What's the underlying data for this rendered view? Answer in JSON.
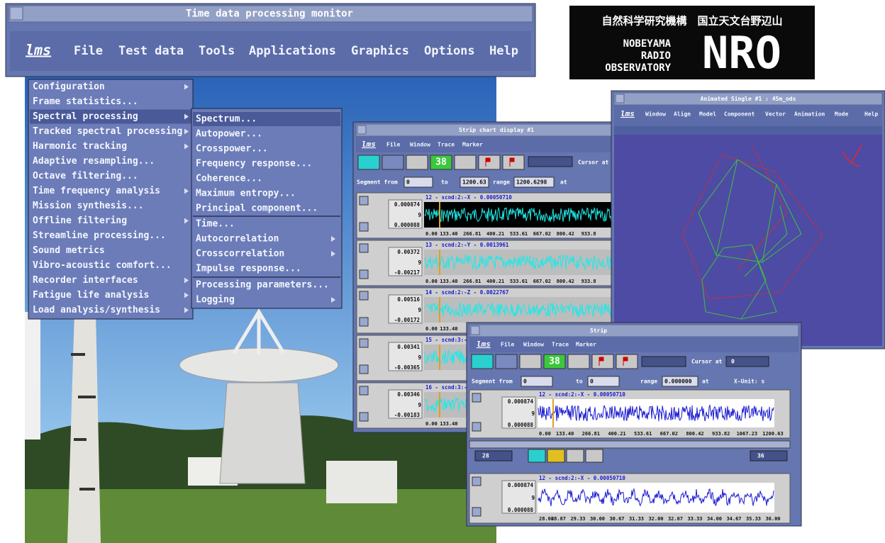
{
  "main_window": {
    "title": "Time data processing monitor",
    "logo": "lms",
    "menu": [
      "File",
      "Test data",
      "Tools",
      "Applications",
      "Graphics",
      "Options",
      "Help"
    ]
  },
  "nro_logo": {
    "japanese": "自然科学研究機構　国立天文台野辺山",
    "lines": [
      "NOBEYAMA",
      "RADIO",
      "OBSERVATORY"
    ],
    "mark": "NRO"
  },
  "tools_menu": {
    "items": [
      "Configuration",
      "Frame statistics...",
      "Spectral processing",
      "Tracked spectral processing",
      "Harmonic tracking",
      "Adaptive resampling...",
      "Octave filtering...",
      "Time frequency analysis",
      "Mission synthesis...",
      "Offline filtering",
      "Streamline processing...",
      "Sound metrics",
      "Vibro-acoustic comfort...",
      "Recorder interfaces",
      "Fatigue life analysis",
      "Load analysis/synthesis"
    ]
  },
  "spectral_submenu": {
    "items": [
      "Spectrum...",
      "Autopower...",
      "Crosspower...",
      "Frequency response...",
      "Coherence...",
      "Maximum entropy...",
      "Principal component...",
      "Time...",
      "Autocorrelation",
      "Crosscorrelation",
      "Impulse response...",
      "Processing parameters...",
      "Logging"
    ]
  },
  "strip_chart_1": {
    "title": "Strip chart display #1",
    "logo": "lms",
    "menu": [
      "File",
      "Window",
      "Trace",
      "Marker"
    ],
    "toolbar_number": "38",
    "cursor_label": "Cursor at",
    "segment_row": [
      "Segment from",
      "0",
      "to",
      "1200.63",
      "range",
      "1200.6298",
      "at"
    ],
    "traces": [
      {
        "label": "12 - scnd:2:-X - 0.00050710",
        "y_top": "0.000874",
        "y_mid": "9",
        "y_bot": "0.000088",
        "x_ticks": [
          "0.00",
          "133.40",
          "266.81",
          "400.21",
          "533.61",
          "667.02",
          "800.42",
          "933.8"
        ]
      },
      {
        "label": "13 - scnd:2:-Y - 0.0013961",
        "y_top": "0.00372",
        "y_mid": "9",
        "y_bot": "-0.00217",
        "x_ticks": [
          "0.00",
          "133.40",
          "266.81",
          "400.21",
          "533.61",
          "667.02",
          "800.42",
          "933.8"
        ]
      },
      {
        "label": "14 - scnd:2:-Z - 0.0022767",
        "y_top": "0.00516",
        "y_mid": "9",
        "y_bot": "-0.00172",
        "x_ticks": [
          "0.00",
          "133.40"
        ]
      },
      {
        "label": "15 - scnd:3:-",
        "y_top": "0.00341",
        "y_mid": "9",
        "y_bot": "-0.00365",
        "x_ticks": []
      },
      {
        "label": "16 - scnd:3:-",
        "y_top": "0.00346",
        "y_mid": "9",
        "y_bot": "-0.00183",
        "x_ticks": [
          "0.00",
          "133.40"
        ]
      }
    ]
  },
  "animated_window": {
    "title": "Animated Single #1 : 45m_ods",
    "logo": "lms",
    "menu": [
      "Window",
      "Align",
      "Model",
      "Component",
      "Vector",
      "Animation",
      "Mode",
      "Help"
    ]
  },
  "strip_chart_2": {
    "title": "Strip",
    "logo": "lms",
    "menu": [
      "File",
      "Window",
      "Trace",
      "Marker"
    ],
    "toolbar_number": "38",
    "cursor_label": "Cursor at",
    "cursor_value": "0",
    "segment_row": [
      "Segment from",
      "0",
      "to",
      "0",
      "range",
      "0.000000",
      "at",
      "X-Unit: s"
    ],
    "zoom_from": "28",
    "zoom_to": "36",
    "traces": [
      {
        "label": "12 - scnd:2:-X - 0.00050710",
        "y_top": "0.000874",
        "y_mid": "9",
        "y_bot": "0.000088",
        "x_ticks": [
          "0.00",
          "133.40",
          "266.81",
          "400.21",
          "533.61",
          "667.02",
          "800.42",
          "933.82",
          "1067.23",
          "1200.63"
        ]
      },
      {
        "label": "12 - scnd:2:-X - 0.00050710",
        "y_top": "0.000874",
        "y_mid": "9",
        "y_bot": "0.000088",
        "x_ticks": [
          "28.00",
          "28.67",
          "29.33",
          "30.00",
          "30.67",
          "31.33",
          "32.00",
          "32.67",
          "33.33",
          "34.00",
          "34.67",
          "35.33",
          "36.00"
        ]
      }
    ]
  }
}
